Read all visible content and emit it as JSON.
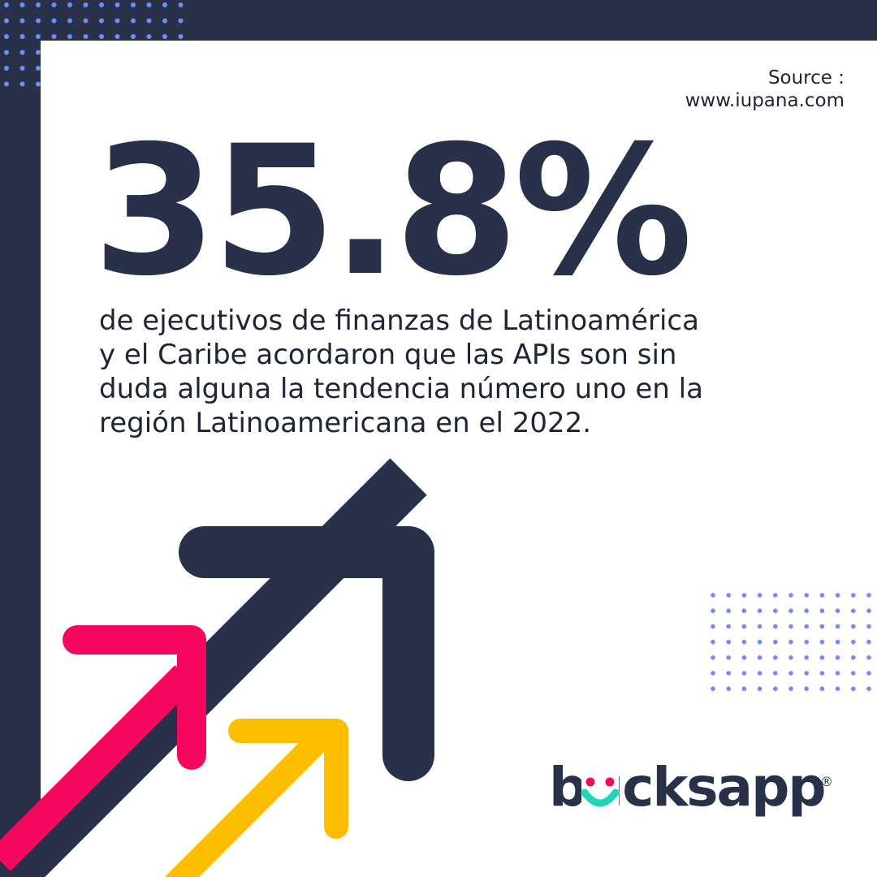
{
  "source": {
    "label": "Source :",
    "url": "www.iupana.com"
  },
  "headline": {
    "stat": "35.8%"
  },
  "description": {
    "lines": [
      "de ejecutivos de finanzas de Latinoamérica",
      "y el Caribe acordaron que las APIs son sin",
      "duda alguna la tendencia número uno en la",
      "región Latinoamericana en el 2022."
    ]
  },
  "brand": {
    "name": "bucksapp",
    "registered": "®"
  },
  "colors": {
    "navy": "#283149",
    "pink": "#f5075d",
    "yellow": "#ffbd00",
    "teal": "#20d5b9",
    "dots": "#6f8ef2"
  },
  "decorations": {
    "arrows": [
      "navy-arrow-icon",
      "pink-arrow-icon",
      "yellow-arrow-icon"
    ]
  }
}
